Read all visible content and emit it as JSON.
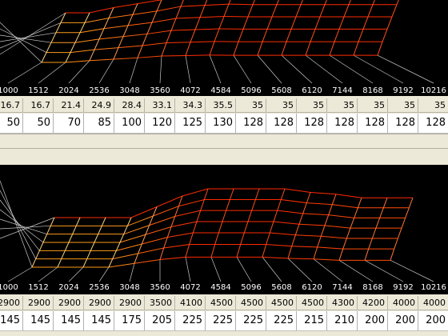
{
  "rpm_axis": [
    "1000",
    "1512",
    "2024",
    "2536",
    "3048",
    "3560",
    "4072",
    "4584",
    "5096",
    "5608",
    "6120",
    "7144",
    "8168",
    "9192",
    "10216"
  ],
  "top_table": {
    "values_row": [
      "16.7",
      "16.7",
      "21.4",
      "24.9",
      "28.4",
      "33.1",
      "34.3",
      "35.5",
      "35",
      "35",
      "35",
      "35",
      "35",
      "35",
      "35"
    ],
    "main_row": [
      "50",
      "50",
      "70",
      "85",
      "100",
      "120",
      "125",
      "130",
      "128",
      "128",
      "128",
      "128",
      "128",
      "128",
      "128"
    ]
  },
  "bottom_table": {
    "values_row": [
      "2900",
      "2900",
      "2900",
      "2900",
      "2900",
      "3500",
      "4100",
      "4500",
      "4500",
      "4500",
      "4500",
      "4300",
      "4200",
      "4000",
      "4000"
    ],
    "main_row": [
      "145",
      "145",
      "145",
      "145",
      "175",
      "205",
      "225",
      "225",
      "225",
      "225",
      "215",
      "210",
      "200",
      "200",
      "200"
    ]
  },
  "colors": {
    "plot_bg": "#000000",
    "mesh_low": "#ff9a1a",
    "mesh_high": "#ff2a00",
    "mesh_light": "#ffd27a",
    "axis_line": "#c8c8c8"
  }
}
